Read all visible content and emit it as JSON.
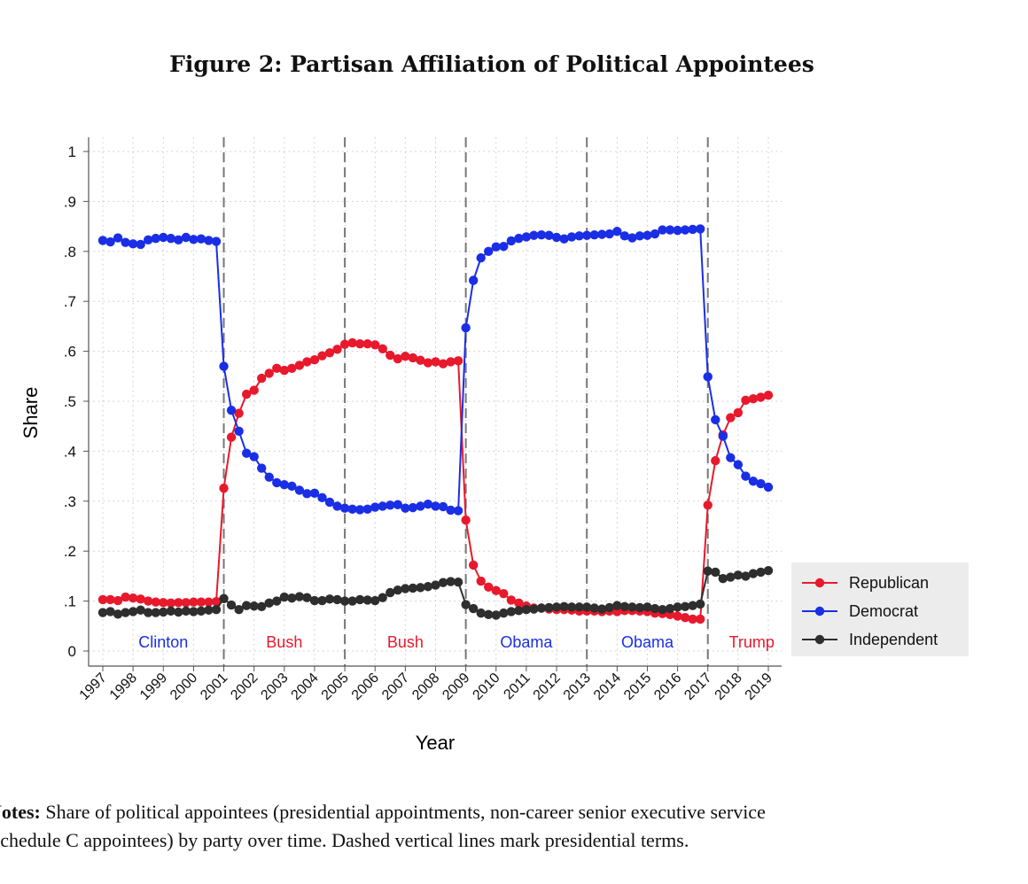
{
  "chart_data": {
    "type": "line",
    "title": "Figure 2: Partisan Affiliation of Political Appointees",
    "xlabel": "Year",
    "ylabel": "Share",
    "xlim": [
      1997,
      2019
    ],
    "ylim": [
      0,
      1
    ],
    "x_start": 1997,
    "x_step": 0.25,
    "x_ticks": [
      "1997",
      "1998",
      "1999",
      "2000",
      "2001",
      "2002",
      "2003",
      "2004",
      "2005",
      "2006",
      "2007",
      "2008",
      "2009",
      "2010",
      "2011",
      "2012",
      "2013",
      "2014",
      "2015",
      "2016",
      "2017",
      "2018",
      "2019"
    ],
    "y_ticks": [
      {
        "v": 0,
        "label": "0"
      },
      {
        "v": 0.1,
        "label": ".1"
      },
      {
        "v": 0.2,
        "label": ".2"
      },
      {
        "v": 0.3,
        "label": ".3"
      },
      {
        "v": 0.4,
        "label": ".4"
      },
      {
        "v": 0.5,
        "label": ".5"
      },
      {
        "v": 0.6,
        "label": ".6"
      },
      {
        "v": 0.7,
        "label": ".7"
      },
      {
        "v": 0.8,
        "label": ".8"
      },
      {
        "v": 0.9,
        "label": ".9"
      },
      {
        "v": 1,
        "label": "1"
      }
    ],
    "grid": true,
    "legend_position": "right",
    "term_lines": [
      2001,
      2005,
      2009,
      2013,
      2017
    ],
    "term_labels": [
      {
        "label": "Clinton",
        "from": 1997,
        "to": 2001,
        "color": "#1a2ee6"
      },
      {
        "label": "Bush",
        "from": 2001,
        "to": 2005,
        "color": "#e8192c"
      },
      {
        "label": "Bush",
        "from": 2005,
        "to": 2009,
        "color": "#e8192c"
      },
      {
        "label": "Obama",
        "from": 2009,
        "to": 2013,
        "color": "#1a2ee6"
      },
      {
        "label": "Obama",
        "from": 2013,
        "to": 2017,
        "color": "#1a2ee6"
      },
      {
        "label": "Trump",
        "from": 2017,
        "to": 2020,
        "color": "#e8192c"
      }
    ],
    "series": [
      {
        "name": "Republican",
        "color": "#e8192c",
        "values": [
          0.103,
          0.103,
          0.101,
          0.108,
          0.106,
          0.104,
          0.1,
          0.098,
          0.097,
          0.096,
          0.097,
          0.097,
          0.098,
          0.098,
          0.098,
          0.099,
          0.326,
          0.428,
          0.476,
          0.514,
          0.522,
          0.546,
          0.556,
          0.566,
          0.562,
          0.566,
          0.572,
          0.579,
          0.583,
          0.591,
          0.597,
          0.604,
          0.614,
          0.617,
          0.615,
          0.615,
          0.613,
          0.605,
          0.592,
          0.585,
          0.59,
          0.587,
          0.582,
          0.577,
          0.579,
          0.575,
          0.579,
          0.581,
          0.262,
          0.172,
          0.14,
          0.128,
          0.121,
          0.115,
          0.102,
          0.096,
          0.09,
          0.086,
          0.086,
          0.084,
          0.083,
          0.083,
          0.082,
          0.08,
          0.08,
          0.08,
          0.079,
          0.08,
          0.079,
          0.081,
          0.081,
          0.08,
          0.079,
          0.076,
          0.075,
          0.073,
          0.07,
          0.067,
          0.064,
          0.064,
          0.292,
          0.381,
          0.433,
          0.467,
          0.477,
          0.502,
          0.505,
          0.508,
          0.512
        ]
      },
      {
        "name": "Democrat",
        "color": "#1a2ee6",
        "values": [
          0.822,
          0.819,
          0.827,
          0.818,
          0.815,
          0.814,
          0.823,
          0.826,
          0.828,
          0.826,
          0.823,
          0.828,
          0.824,
          0.825,
          0.822,
          0.82,
          0.57,
          0.482,
          0.44,
          0.396,
          0.389,
          0.366,
          0.348,
          0.337,
          0.333,
          0.33,
          0.322,
          0.315,
          0.316,
          0.307,
          0.298,
          0.29,
          0.286,
          0.284,
          0.283,
          0.284,
          0.288,
          0.29,
          0.292,
          0.293,
          0.286,
          0.287,
          0.29,
          0.294,
          0.29,
          0.289,
          0.282,
          0.281,
          0.647,
          0.742,
          0.787,
          0.8,
          0.809,
          0.81,
          0.821,
          0.826,
          0.829,
          0.832,
          0.833,
          0.832,
          0.828,
          0.825,
          0.829,
          0.831,
          0.832,
          0.833,
          0.834,
          0.835,
          0.84,
          0.831,
          0.827,
          0.831,
          0.832,
          0.835,
          0.843,
          0.843,
          0.842,
          0.843,
          0.844,
          0.845,
          0.549,
          0.463,
          0.43,
          0.387,
          0.373,
          0.35,
          0.34,
          0.335,
          0.328
        ]
      },
      {
        "name": "Independent",
        "color": "#2e2e2e",
        "values": [
          0.077,
          0.079,
          0.074,
          0.077,
          0.079,
          0.082,
          0.077,
          0.077,
          0.078,
          0.08,
          0.078,
          0.08,
          0.079,
          0.08,
          0.082,
          0.083,
          0.105,
          0.092,
          0.083,
          0.091,
          0.09,
          0.089,
          0.096,
          0.1,
          0.108,
          0.106,
          0.109,
          0.107,
          0.101,
          0.101,
          0.104,
          0.103,
          0.1,
          0.1,
          0.103,
          0.102,
          0.101,
          0.107,
          0.117,
          0.122,
          0.125,
          0.126,
          0.127,
          0.129,
          0.132,
          0.137,
          0.139,
          0.138,
          0.093,
          0.085,
          0.076,
          0.073,
          0.072,
          0.076,
          0.079,
          0.081,
          0.083,
          0.084,
          0.086,
          0.087,
          0.088,
          0.089,
          0.088,
          0.088,
          0.088,
          0.086,
          0.084,
          0.087,
          0.091,
          0.089,
          0.088,
          0.087,
          0.088,
          0.085,
          0.083,
          0.085,
          0.088,
          0.089,
          0.091,
          0.094,
          0.16,
          0.158,
          0.145,
          0.148,
          0.152,
          0.15,
          0.155,
          0.158,
          0.161
        ]
      }
    ]
  },
  "notes": {
    "label": "Notes:",
    "line1": "Share of political appointees (presidential appointments, non-career senior executive service",
    "line2": "Schedule C appointees) by party over time. Dashed vertical lines mark presidential terms."
  }
}
